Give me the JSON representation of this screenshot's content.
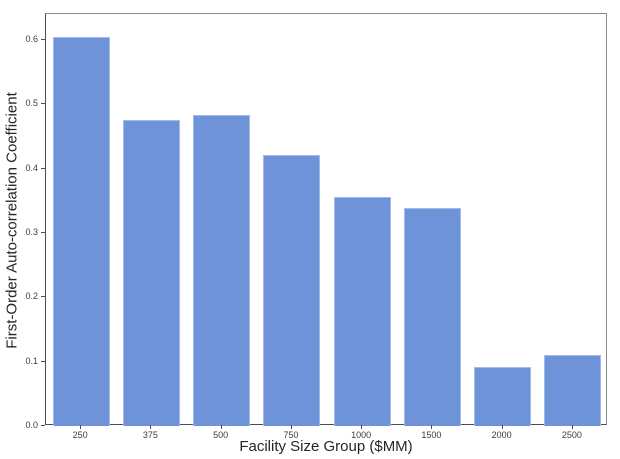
{
  "chart_data": {
    "type": "bar",
    "title": "",
    "xlabel": "Facility Size Group ($MM)",
    "ylabel": "First-Order Auto-correlation Coefficient",
    "categories": [
      "250",
      "375",
      "500",
      "750",
      "1000",
      "1500",
      "2000",
      "2500"
    ],
    "values": [
      0.605,
      0.475,
      0.483,
      0.421,
      0.356,
      0.339,
      0.091,
      0.11
    ],
    "ylim": [
      0,
      0.64
    ],
    "yticks": [
      {
        "label": "0.0",
        "value": 0.0
      },
      {
        "label": "0.1",
        "value": 0.1
      },
      {
        "label": "0.2",
        "value": 0.2
      },
      {
        "label": "0.3",
        "value": 0.3
      },
      {
        "label": "0.4",
        "value": 0.4
      },
      {
        "label": "0.5",
        "value": 0.5
      },
      {
        "label": "0.6",
        "value": 0.6
      }
    ],
    "grid": false,
    "legend_position": "none",
    "bar_color": "#6f93d8",
    "bar_edge_color": "#a3b9e6",
    "axis_color": "#4d4d4d",
    "spine_color": "#8c8c8c",
    "tick_label_color": "#3c3c3c",
    "axis_title_color": "#262626",
    "background_color": "#ffffff"
  }
}
